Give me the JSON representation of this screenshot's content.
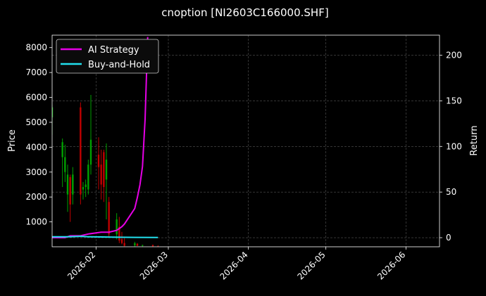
{
  "chart_data": {
    "type": "candlestick+line",
    "title": "cnoption [NI2603C166000.SHF]",
    "ylabel_left": "Price",
    "ylabel_right": "Return",
    "xlabel": "",
    "grid": true,
    "legend_placement": "top-left",
    "xlim": [
      "2026-01-15",
      "2026-06-14"
    ],
    "ylim_left": [
      0,
      8500
    ],
    "ylim_right": [
      -10,
      222
    ],
    "x_ticks": [
      "2026-02",
      "2026-03",
      "2026-04",
      "2026-05",
      "2026-06"
    ],
    "y_ticks_left": [
      1000,
      2000,
      3000,
      4000,
      5000,
      6000,
      7000,
      8000
    ],
    "y_ticks_right": [
      0,
      50,
      100,
      150,
      200
    ],
    "colors": {
      "background": "#000000",
      "up": "#00a000",
      "down": "#c00000",
      "ai_strategy": "#e600e6",
      "buy_and_hold": "#22e0ee",
      "grid": "#555555"
    },
    "candles": [
      {
        "date": "2026-01-15",
        "open": 5200,
        "high": 5700,
        "low": 4500,
        "close": 5600
      },
      {
        "date": "2026-01-19",
        "open": 3600,
        "high": 4350,
        "low": 2400,
        "close": 4200
      },
      {
        "date": "2026-01-20",
        "open": 3000,
        "high": 4100,
        "low": 2600,
        "close": 3600
      },
      {
        "date": "2026-01-21",
        "open": 2100,
        "high": 3300,
        "low": 1400,
        "close": 2900
      },
      {
        "date": "2026-01-22",
        "open": 2800,
        "high": 2900,
        "low": 1000,
        "close": 1700
      },
      {
        "date": "2026-01-23",
        "open": 2100,
        "high": 3200,
        "low": 1700,
        "close": 2900
      },
      {
        "date": "2026-01-26",
        "open": 5600,
        "high": 5800,
        "low": 1700,
        "close": 2100
      },
      {
        "date": "2026-01-27",
        "open": 2300,
        "high": 2600,
        "low": 1900,
        "close": 2400
      },
      {
        "date": "2026-01-28",
        "open": 2400,
        "high": 2700,
        "low": 2000,
        "close": 2500
      },
      {
        "date": "2026-01-29",
        "open": 2300,
        "high": 3500,
        "low": 2100,
        "close": 3300
      },
      {
        "date": "2026-01-30",
        "open": 3300,
        "high": 6100,
        "low": 2900,
        "close": 4300
      },
      {
        "date": "2026-02-02",
        "open": 3700,
        "high": 4400,
        "low": 2300,
        "close": 3200
      },
      {
        "date": "2026-02-03",
        "open": 3300,
        "high": 3900,
        "low": 1900,
        "close": 2500
      },
      {
        "date": "2026-02-04",
        "open": 3800,
        "high": 3900,
        "low": 1800,
        "close": 2400
      },
      {
        "date": "2026-02-05",
        "open": 2700,
        "high": 4150,
        "low": 1100,
        "close": 3500
      },
      {
        "date": "2026-02-06",
        "open": 1800,
        "high": 2000,
        "low": 400,
        "close": 500
      },
      {
        "date": "2026-02-09",
        "open": 500,
        "high": 1350,
        "low": 300,
        "close": 1100
      },
      {
        "date": "2026-02-10",
        "open": 800,
        "high": 1200,
        "low": 150,
        "close": 250
      },
      {
        "date": "2026-02-11",
        "open": 300,
        "high": 600,
        "low": 100,
        "close": 150
      },
      {
        "date": "2026-02-12",
        "open": 150,
        "high": 350,
        "low": 20,
        "close": 40
      },
      {
        "date": "2026-02-16",
        "open": 60,
        "high": 200,
        "low": 10,
        "close": 140
      },
      {
        "date": "2026-02-17",
        "open": 120,
        "high": 150,
        "low": 30,
        "close": 40
      },
      {
        "date": "2026-02-19",
        "open": 40,
        "high": 80,
        "low": 5,
        "close": 70
      },
      {
        "date": "2026-02-23",
        "open": 70,
        "high": 90,
        "low": 5,
        "close": 20
      },
      {
        "date": "2026-02-25",
        "open": 20,
        "high": 60,
        "low": 5,
        "close": 10
      }
    ],
    "series": [
      {
        "name": "AI Strategy",
        "axis": "right",
        "points": [
          {
            "x": "2026-01-15",
            "y": 0
          },
          {
            "x": "2026-01-20",
            "y": 0
          },
          {
            "x": "2026-01-22",
            "y": 2
          },
          {
            "x": "2026-01-26",
            "y": 2
          },
          {
            "x": "2026-01-29",
            "y": 4
          },
          {
            "x": "2026-02-03",
            "y": 6
          },
          {
            "x": "2026-02-06",
            "y": 6
          },
          {
            "x": "2026-02-09",
            "y": 8
          },
          {
            "x": "2026-02-10",
            "y": 10
          },
          {
            "x": "2026-02-11",
            "y": 12
          },
          {
            "x": "2026-02-12",
            "y": 15
          },
          {
            "x": "2026-02-16",
            "y": 32
          },
          {
            "x": "2026-02-17",
            "y": 44
          },
          {
            "x": "2026-02-18",
            "y": 58
          },
          {
            "x": "2026-02-19",
            "y": 78
          },
          {
            "x": "2026-02-20",
            "y": 130
          },
          {
            "x": "2026-02-21",
            "y": 220
          }
        ]
      },
      {
        "name": "Buy-and-Hold",
        "axis": "right",
        "points": [
          {
            "x": "2026-01-15",
            "y": 1
          },
          {
            "x": "2026-01-22",
            "y": 1
          },
          {
            "x": "2026-01-26",
            "y": 1.5
          },
          {
            "x": "2026-01-29",
            "y": 1
          },
          {
            "x": "2026-02-03",
            "y": 0.8
          },
          {
            "x": "2026-02-09",
            "y": 0.5
          },
          {
            "x": "2026-02-16",
            "y": 0.3
          },
          {
            "x": "2026-02-25",
            "y": 0.2
          }
        ]
      }
    ]
  }
}
